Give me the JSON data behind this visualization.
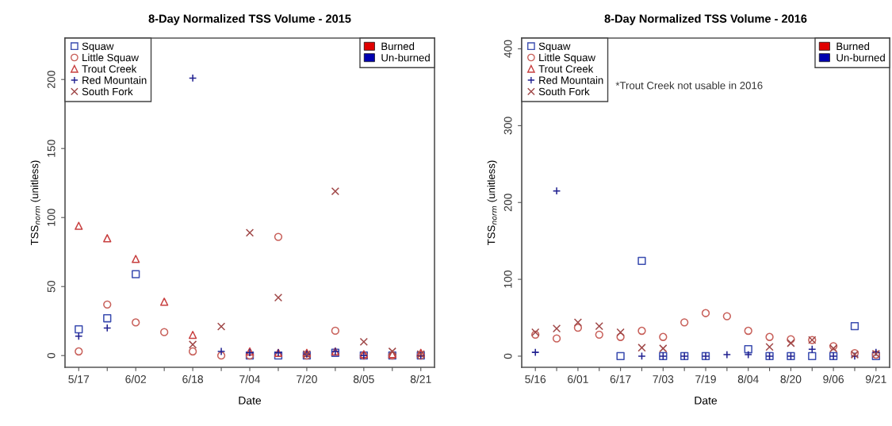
{
  "chart_data": [
    {
      "type": "scatter",
      "title": "8-Day Normalized TSS Volume - 2015",
      "xlabel": "Date",
      "ylabel": "TSS$_{norm}$ (unitless)",
      "categories": [
        "5/17",
        null,
        "6/02",
        null,
        "6/18",
        null,
        "7/04",
        null,
        "7/20",
        null,
        "8/05",
        null,
        "8/21"
      ],
      "ylim": [
        -8.5,
        230
      ],
      "yticks": [
        0,
        50,
        100,
        150,
        200
      ],
      "grid": false,
      "legend": "top left",
      "series": [
        {
          "name": "Squaw",
          "color": "#3b4db0",
          "marker": "square",
          "values": [
            19,
            27,
            59,
            null,
            null,
            null,
            0,
            0,
            0,
            2,
            0,
            0,
            0
          ]
        },
        {
          "name": "Little Squaw",
          "color": "#c8605a",
          "marker": "circle",
          "values": [
            3,
            37,
            24,
            17,
            3,
            0,
            0,
            86,
            0,
            18,
            0,
            0,
            0
          ]
        },
        {
          "name": "Trout Creek",
          "color": "#c84040",
          "marker": "triangle",
          "values": [
            94,
            85,
            70,
            39,
            15,
            null,
            3,
            2,
            2,
            3,
            1,
            1,
            2
          ]
        },
        {
          "name": "Red Mountain",
          "color": "#202090",
          "marker": "plus",
          "values": [
            14,
            20,
            null,
            null,
            201,
            3,
            2,
            2,
            1,
            3,
            0,
            null,
            0
          ]
        },
        {
          "name": "South Fork",
          "color": "#a04848",
          "marker": "cross",
          "values": [
            null,
            null,
            null,
            null,
            8,
            21,
            89,
            42,
            1,
            119,
            10,
            3,
            1
          ]
        },
        {
          "type": "bar",
          "name": "Burned",
          "color": "#e00000",
          "values": [
            null,
            null,
            null,
            null,
            null,
            null,
            null,
            null,
            null,
            null,
            null,
            null,
            null
          ]
        },
        {
          "type": "bar",
          "name": "Un-burned",
          "color": "#0000b0",
          "values": [
            null,
            null,
            null,
            null,
            null,
            null,
            null,
            null,
            null,
            null,
            null,
            null,
            null
          ]
        }
      ]
    },
    {
      "type": "scatter",
      "title": "8-Day Normalized TSS Volume - 2016",
      "xlabel": "Date",
      "ylabel": "TSS$_{norm}$ (unitless)",
      "categories": [
        "5/16",
        null,
        "6/01",
        null,
        "6/17",
        null,
        "7/03",
        null,
        "7/19",
        null,
        "8/04",
        null,
        "8/20",
        null,
        "9/06",
        null,
        "9/21"
      ],
      "ylim": [
        -14.5,
        414
      ],
      "yticks": [
        0,
        100,
        200,
        300,
        400
      ],
      "grid": false,
      "legend": "top left",
      "annotations": [
        "*Trout Creek not usable in 2016"
      ],
      "series": [
        {
          "name": "Squaw",
          "color": "#3b4db0",
          "marker": "square",
          "values": [
            null,
            null,
            null,
            null,
            0,
            124,
            0,
            0,
            0,
            null,
            9,
            0,
            0,
            0,
            0,
            39,
            0
          ]
        },
        {
          "name": "Little Squaw",
          "color": "#c8605a",
          "marker": "circle",
          "values": [
            28,
            23,
            37,
            28,
            25,
            33,
            25,
            44,
            56,
            52,
            33,
            25,
            22,
            21,
            13,
            4,
            2
          ]
        },
        {
          "name": "Trout Creek",
          "color": "#c84040",
          "marker": "triangle",
          "values": [
            null,
            null,
            null,
            null,
            null,
            null,
            null,
            null,
            null,
            null,
            null,
            null,
            null,
            null,
            null,
            null,
            null
          ]
        },
        {
          "name": "Red Mountain",
          "color": "#202090",
          "marker": "plus",
          "values": [
            5,
            215,
            null,
            null,
            null,
            0,
            0,
            0,
            0,
            2,
            2,
            0,
            0,
            9,
            0,
            0,
            5
          ]
        },
        {
          "name": "South Fork",
          "color": "#a04848",
          "marker": "cross",
          "values": [
            31,
            36,
            44,
            39,
            31,
            11,
            10,
            null,
            null,
            null,
            null,
            12,
            17,
            21,
            10,
            2,
            3
          ]
        },
        {
          "type": "bar",
          "name": "Burned",
          "color": "#e00000",
          "values": [
            null,
            null,
            null,
            null,
            null,
            null,
            null,
            null,
            null,
            null,
            null,
            null,
            null,
            null,
            null,
            null,
            null
          ]
        },
        {
          "type": "bar",
          "name": "Un-burned",
          "color": "#0000b0",
          "values": [
            null,
            null,
            null,
            null,
            null,
            null,
            null,
            null,
            null,
            null,
            null,
            null,
            null,
            null,
            null,
            null,
            null
          ]
        }
      ]
    }
  ]
}
